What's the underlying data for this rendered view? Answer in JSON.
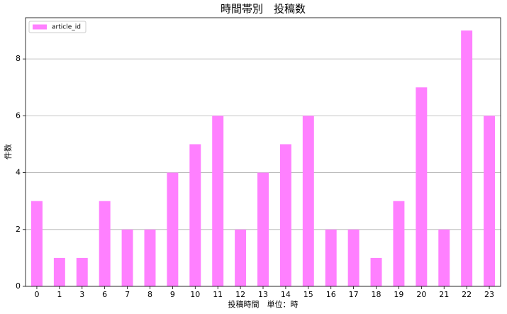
{
  "chart_data": {
    "type": "bar",
    "title": "時間帯別　投稿数",
    "x_label": "投稿時間　単位：時",
    "y_label": "件数",
    "categories": [
      "0",
      "1",
      "3",
      "6",
      "7",
      "8",
      "9",
      "10",
      "11",
      "12",
      "13",
      "14",
      "15",
      "16",
      "17",
      "18",
      "19",
      "20",
      "21",
      "22",
      "23"
    ],
    "series": [
      {
        "name": "article_id",
        "color": "#ff80ff",
        "values": [
          3,
          1,
          1,
          3,
          2,
          2,
          4,
          5,
          6,
          2,
          4,
          5,
          6,
          2,
          2,
          1,
          3,
          7,
          2,
          9,
          6
        ]
      }
    ],
    "ylim": [
      0,
      9.45
    ],
    "yticks": [
      0,
      2,
      4,
      6,
      8
    ],
    "grid": true,
    "legend": "upper-left"
  }
}
